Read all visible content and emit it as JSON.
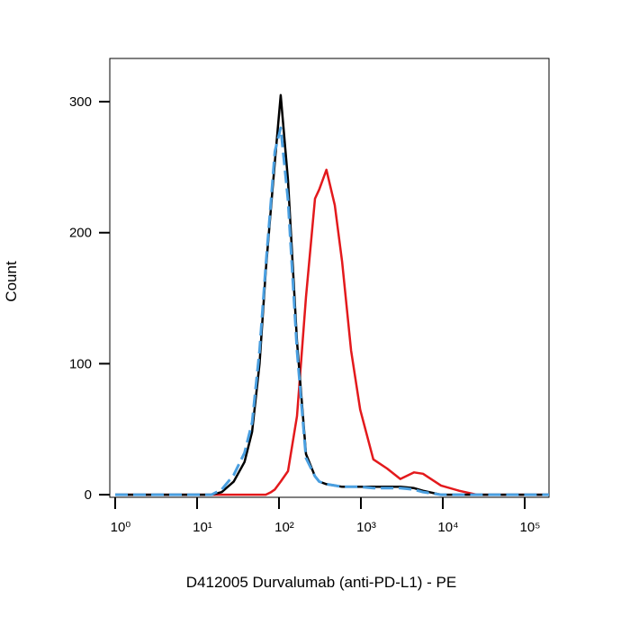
{
  "chart_data": {
    "type": "line",
    "xlabel": "D412005 Durvalumab (anti-PD-L1) - PE",
    "ylabel": "Count",
    "xscale": "log",
    "xlim": [
      0.86,
      198000
    ],
    "ylim": [
      -2,
      333
    ],
    "xticks": [
      {
        "value": 1,
        "label": "10⁰"
      },
      {
        "value": 10,
        "label": "10¹"
      },
      {
        "value": 100,
        "label": "10²"
      },
      {
        "value": 1000,
        "label": "10³"
      },
      {
        "value": 10000,
        "label": "10⁴"
      },
      {
        "value": 100000,
        "label": "10⁵"
      }
    ],
    "yticks": [
      0,
      100,
      200,
      300
    ],
    "x": [
      1,
      10,
      15,
      20,
      28,
      38,
      47,
      58,
      69,
      80,
      89,
      105,
      129,
      166,
      214,
      275,
      310,
      380,
      480,
      590,
      760,
      980,
      1420,
      2090,
      3030,
      4460,
      5730,
      9500,
      15800,
      26000,
      100000,
      198000
    ],
    "series": [
      {
        "color": "#e3191c",
        "dash": false,
        "values": [
          0,
          0,
          0,
          0,
          0,
          0,
          0,
          0,
          0,
          2,
          4,
          10,
          18,
          60,
          151,
          226,
          233,
          248,
          221,
          178,
          110,
          65,
          27,
          20,
          12,
          17,
          16,
          7,
          3,
          0,
          0,
          0
        ]
      },
      {
        "color": "#000000",
        "dash": false,
        "values": [
          0,
          0,
          0,
          2,
          10,
          25,
          48,
          100,
          171,
          220,
          254,
          305,
          240,
          117,
          31,
          14,
          10,
          8,
          7,
          6,
          6,
          6,
          6,
          6,
          6,
          5,
          3,
          0,
          0,
          0,
          0,
          0
        ]
      },
      {
        "color": "#4a9fe0",
        "dash": true,
        "values": [
          0,
          0,
          0,
          4,
          15,
          32,
          55,
          110,
          175,
          225,
          262,
          280,
          225,
          110,
          28,
          14,
          10,
          8,
          7,
          6,
          6,
          6,
          5,
          5,
          5,
          4,
          2,
          0,
          0,
          0,
          0,
          0
        ]
      }
    ]
  }
}
